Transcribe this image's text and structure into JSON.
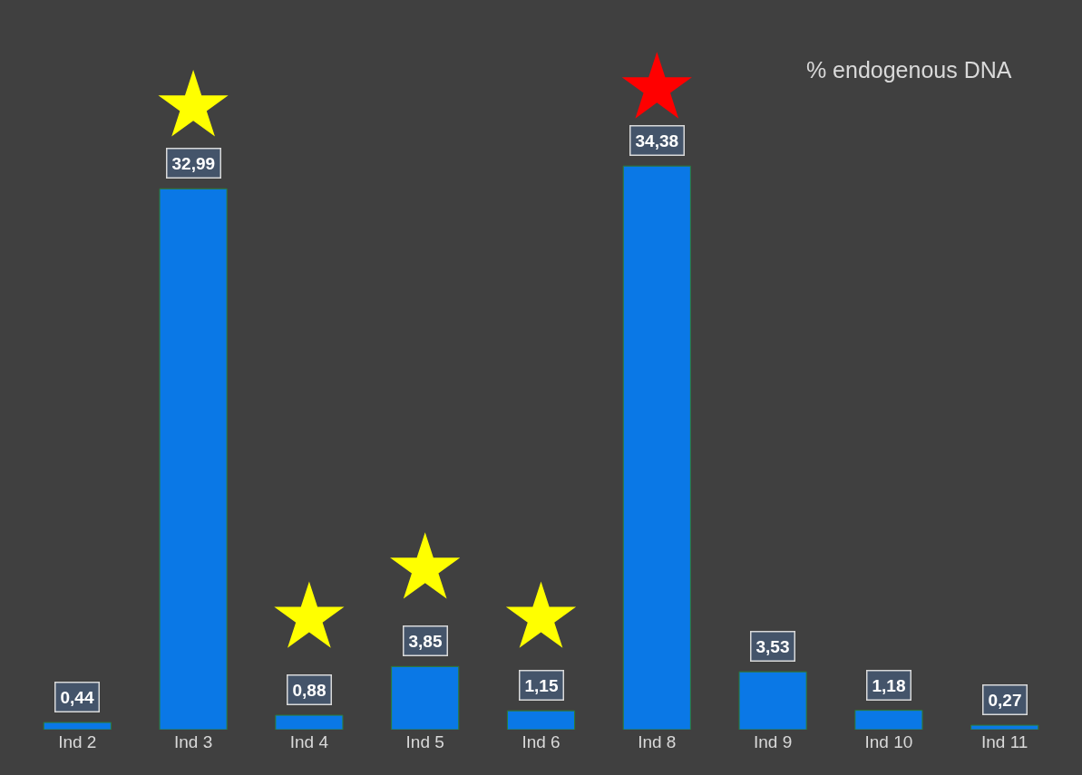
{
  "chart_data": {
    "type": "bar",
    "title": "% endogenous DNA",
    "categories": [
      "Ind 2",
      "Ind 3",
      "Ind 4",
      "Ind 5",
      "Ind 6",
      "Ind 8",
      "Ind 9",
      "Ind 10",
      "Ind 11"
    ],
    "series": [
      {
        "color": "#0a78e6",
        "values": [
          0.44,
          32.99,
          0.88,
          3.85,
          1.15,
          34.38,
          3.53,
          1.18,
          0.27
        ],
        "value_labels": [
          "0,44",
          "32,99",
          "0,88",
          "3,85",
          "1,15",
          "34,38",
          "3,53",
          "1,18",
          "0,27"
        ]
      },
      {
        "type": "scatter",
        "marker": "star",
        "x": [
          "Ind 3",
          "Ind 4",
          "Ind 5",
          "Ind 6",
          "Ind 8"
        ],
        "values": [
          38.0,
          6.8,
          9.8,
          6.8,
          39.1
        ],
        "colors": [
          "#ffff00",
          "#ffff00",
          "#ffff00",
          "#ffff00",
          "#ff0000"
        ]
      }
    ],
    "grid": false
  }
}
